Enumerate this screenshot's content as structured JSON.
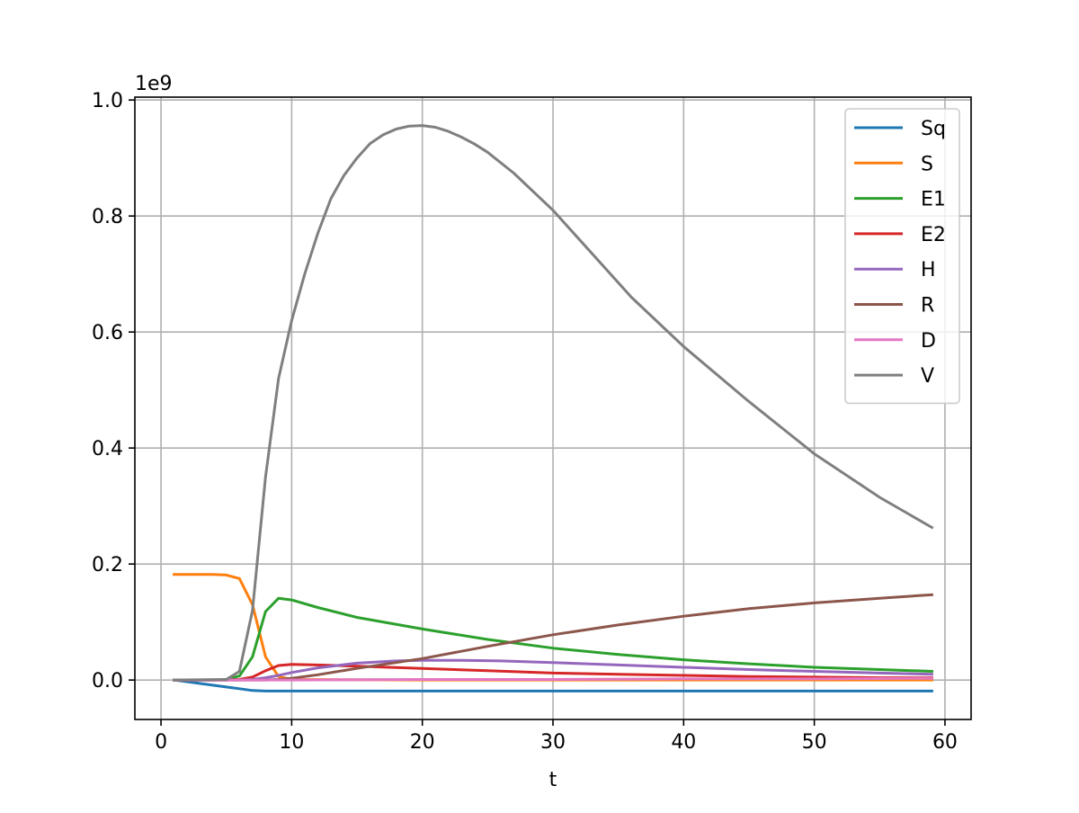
{
  "chart_data": {
    "type": "line",
    "title": "",
    "xlabel": "t",
    "ylabel": "",
    "y_offset_label": "1e9",
    "xlim": [
      -2,
      62
    ],
    "ylim": [
      -0.068,
      1.005
    ],
    "xticks": [
      0,
      10,
      20,
      30,
      40,
      50,
      60
    ],
    "xtick_labels": [
      "0",
      "10",
      "20",
      "30",
      "40",
      "50",
      "60"
    ],
    "yticks": [
      0.0,
      0.2,
      0.4,
      0.6,
      0.8,
      1.0
    ],
    "ytick_labels": [
      "0.0",
      "0.2",
      "0.4",
      "0.6",
      "0.8",
      "1.0"
    ],
    "grid": true,
    "legend_position": "top-right",
    "series": [
      {
        "name": "Sq",
        "color": "#1f77b4",
        "x": [
          1,
          3,
          5,
          6,
          7,
          8,
          10,
          20,
          30,
          40,
          50,
          59
        ],
        "y": [
          0.0,
          -0.006,
          -0.012,
          -0.015,
          -0.018,
          -0.019,
          -0.019,
          -0.019,
          -0.019,
          -0.019,
          -0.019,
          -0.019
        ]
      },
      {
        "name": "S",
        "color": "#ff7f0e",
        "x": [
          1,
          2,
          3,
          4,
          5,
          6,
          7,
          8,
          9,
          10,
          20,
          30,
          40,
          50,
          59
        ],
        "y": [
          0.182,
          0.182,
          0.182,
          0.182,
          0.181,
          0.175,
          0.13,
          0.04,
          0.006,
          0.001,
          0.0,
          0.0,
          0.0,
          0.0,
          0.0
        ]
      },
      {
        "name": "E1",
        "color": "#2ca02c",
        "x": [
          1,
          4,
          5,
          6,
          7,
          8,
          9,
          10,
          12,
          15,
          20,
          25,
          30,
          35,
          40,
          45,
          50,
          55,
          59
        ],
        "y": [
          0.0,
          0.0,
          0.001,
          0.007,
          0.04,
          0.118,
          0.141,
          0.138,
          0.125,
          0.108,
          0.088,
          0.07,
          0.055,
          0.044,
          0.035,
          0.028,
          0.022,
          0.018,
          0.015
        ]
      },
      {
        "name": "E2",
        "color": "#d62728",
        "x": [
          1,
          5,
          6,
          7,
          8,
          9,
          10,
          12,
          15,
          20,
          25,
          30,
          35,
          40,
          45,
          50,
          55,
          59
        ],
        "y": [
          0.0,
          0.0,
          0.001,
          0.005,
          0.016,
          0.025,
          0.027,
          0.026,
          0.024,
          0.02,
          0.016,
          0.012,
          0.01,
          0.008,
          0.006,
          0.005,
          0.004,
          0.004
        ]
      },
      {
        "name": "H",
        "color": "#9467bd",
        "x": [
          1,
          6,
          7,
          8,
          9,
          10,
          12,
          15,
          18,
          20,
          23,
          26,
          30,
          35,
          40,
          45,
          50,
          55,
          59
        ],
        "y": [
          0.0,
          0.0,
          0.001,
          0.004,
          0.008,
          0.013,
          0.021,
          0.029,
          0.033,
          0.034,
          0.034,
          0.033,
          0.03,
          0.026,
          0.022,
          0.018,
          0.015,
          0.012,
          0.01
        ]
      },
      {
        "name": "R",
        "color": "#8c564b",
        "x": [
          1,
          8,
          9,
          10,
          12,
          15,
          20,
          25,
          30,
          35,
          40,
          45,
          50,
          55,
          59
        ],
        "y": [
          0.0,
          0.0,
          0.001,
          0.003,
          0.009,
          0.02,
          0.037,
          0.058,
          0.078,
          0.095,
          0.11,
          0.123,
          0.133,
          0.141,
          0.147
        ]
      },
      {
        "name": "D",
        "color": "#e377c2",
        "x": [
          1,
          10,
          20,
          30,
          40,
          50,
          59
        ],
        "y": [
          0.0,
          0.0,
          0.001,
          0.001,
          0.002,
          0.002,
          0.003
        ]
      },
      {
        "name": "V",
        "color": "#7f7f7f",
        "x": [
          1,
          5,
          6,
          7,
          8,
          9,
          10,
          11,
          12,
          13,
          14,
          15,
          16,
          17,
          18,
          19,
          20,
          21,
          22,
          23,
          24,
          25,
          27,
          30,
          33,
          36,
          40,
          45,
          50,
          55,
          59
        ],
        "y": [
          0.0,
          0.001,
          0.015,
          0.12,
          0.35,
          0.52,
          0.62,
          0.7,
          0.77,
          0.83,
          0.87,
          0.9,
          0.925,
          0.94,
          0.95,
          0.955,
          0.956,
          0.953,
          0.946,
          0.936,
          0.924,
          0.91,
          0.874,
          0.81,
          0.735,
          0.66,
          0.575,
          0.48,
          0.39,
          0.315,
          0.263
        ]
      }
    ]
  }
}
